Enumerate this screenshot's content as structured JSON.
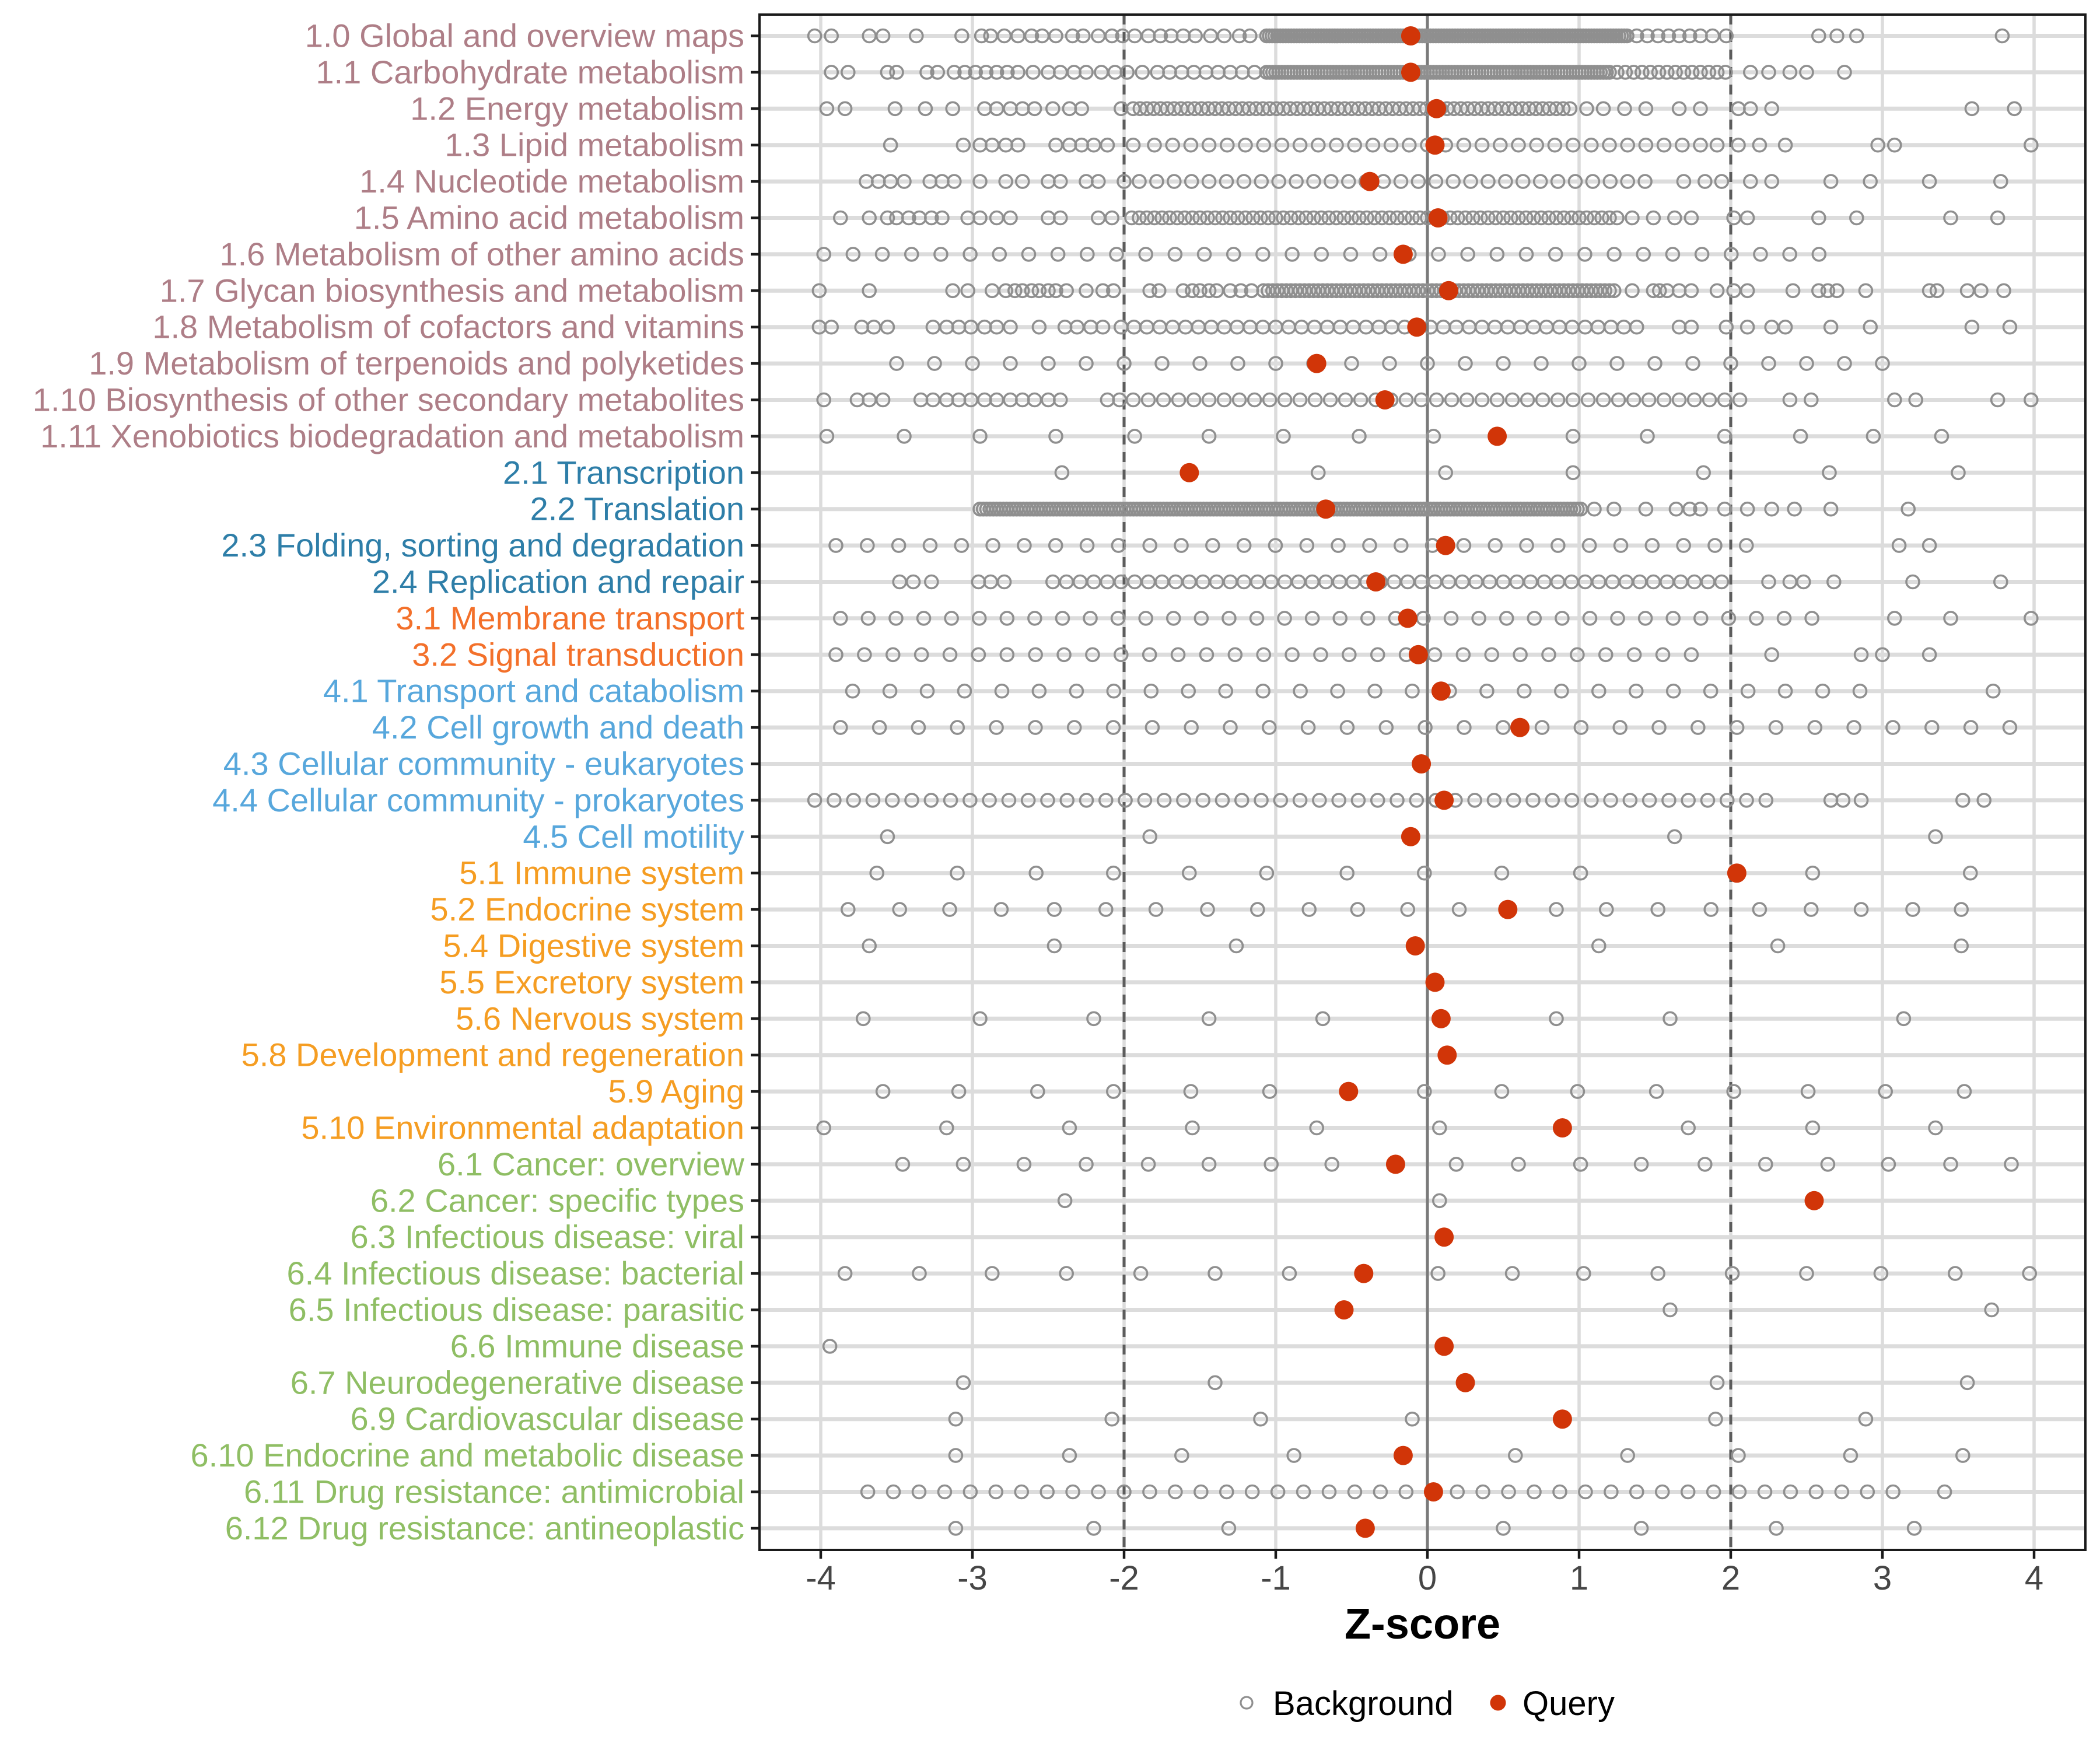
{
  "chart_data": {
    "type": "scatter",
    "title": "",
    "xlabel": "Z-score",
    "x_ticks": [
      -4,
      -3,
      -2,
      -1,
      0,
      1,
      2,
      3,
      4
    ],
    "xlim": [
      -4.4,
      4.34
    ],
    "grid": "on",
    "reference_lines": {
      "solid": [
        0
      ],
      "dashed": [
        -2,
        2
      ]
    },
    "legend": {
      "position": "bottom",
      "items": [
        {
          "label": "Background",
          "style": "open-circle",
          "color": "#8F8F8F"
        },
        {
          "label": "Query",
          "style": "filled-circle",
          "color": "#D13508"
        }
      ]
    },
    "colors": {
      "background_stroke": "#8F8F8F",
      "query_fill": "#D13508",
      "grid_major": "#DCDCDC",
      "zero_line": "#7A7A7A",
      "dashed_line": "#5C5C5C",
      "panel_border": "#1A1A1A",
      "tick_label": "#464646",
      "axis_title": "#000000"
    },
    "group_colors": {
      "metabolism": "#AE7E87",
      "genetic-information-processing": "#2E7EA8",
      "environmental-information-processing": "#F3702A",
      "cellular-processes": "#57A7DC",
      "organismal-systems": "#F59D22",
      "human-diseases": "#8FBE64"
    },
    "rows": [
      {
        "label": "1.0 Global and overview maps",
        "group": "metabolism",
        "query": -0.11,
        "background": [
          -4.04,
          -3.93,
          -3.68,
          -3.59,
          -3.37,
          -3.07,
          -2.94,
          -2.88,
          -2.79,
          -2.7,
          -2.61,
          -2.54,
          -2.45,
          -2.34,
          -2.27,
          -2.17,
          -2.08,
          -2.01,
          -1.93,
          -1.84,
          -1.76,
          -1.69,
          -1.61,
          -1.53,
          -1.43,
          -1.34,
          -1.24,
          -1.17,
          {
            "from": -1.06,
            "to": 1.32,
            "step": 0.018
          },
          1.38,
          1.45,
          1.52,
          1.59,
          1.66,
          1.73,
          1.8,
          1.88,
          1.97,
          2.58,
          2.7,
          2.83,
          3.79
        ]
      },
      {
        "label": "1.1 Carbohydrate metabolism",
        "group": "metabolism",
        "query": -0.11,
        "background": [
          -3.93,
          -3.82,
          -3.56,
          -3.5,
          -3.3,
          -3.23,
          -3.12,
          -3.05,
          -2.98,
          -2.91,
          -2.84,
          -2.77,
          -2.7,
          -2.6,
          -2.5,
          -2.42,
          -2.33,
          -2.25,
          -2.15,
          -2.06,
          -1.98,
          -1.88,
          -1.78,
          -1.7,
          -1.62,
          -1.54,
          -1.46,
          -1.38,
          -1.3,
          -1.22,
          -1.14,
          {
            "from": -1.06,
            "to": 1.2,
            "step": 0.02
          },
          {
            "from": 1.25,
            "to": 2.0,
            "step": 0.055
          },
          2.13,
          2.25,
          2.39,
          2.5,
          2.75
        ]
      },
      {
        "label": "1.2 Energy metabolism",
        "group": "metabolism",
        "query": 0.06,
        "background": [
          -3.96,
          -3.84,
          -3.51,
          -3.31,
          -3.13,
          -2.92,
          -2.84,
          -2.75,
          -2.67,
          -2.59,
          -2.47,
          -2.36,
          -2.28,
          -2.02,
          {
            "from": -1.94,
            "to": 0.98,
            "step": 0.045
          },
          1.05,
          1.16,
          1.3,
          1.44,
          1.66,
          1.8,
          2.05,
          2.13,
          2.27,
          3.59,
          3.87
        ]
      },
      {
        "label": "1.3 Lipid metabolism",
        "group": "metabolism",
        "query": 0.05,
        "background": [
          -3.54,
          -3.06,
          -2.95,
          -2.87,
          -2.78,
          -2.7,
          -2.45,
          -2.36,
          -2.28,
          -2.2,
          -2.11,
          -1.94,
          {
            "from": -1.8,
            "to": 1.8,
            "step": 0.12
          },
          1.91,
          2.05,
          2.19,
          2.36,
          2.97,
          3.08,
          3.98
        ]
      },
      {
        "label": "1.4 Nucleotide metabolism",
        "group": "metabolism",
        "query": -0.38,
        "background": [
          -3.7,
          -3.62,
          -3.54,
          -3.45,
          -3.28,
          -3.2,
          -3.12,
          -2.95,
          -2.78,
          -2.67,
          -2.5,
          -2.42,
          -2.25,
          -2.17,
          -2.0,
          {
            "from": -1.9,
            "to": 1.46,
            "step": 0.115
          },
          1.69,
          1.83,
          1.94,
          2.13,
          2.27,
          2.66,
          2.92,
          3.31,
          3.78
        ]
      },
      {
        "label": "1.5 Amino acid metabolism",
        "group": "metabolism",
        "query": 0.07,
        "background": [
          -3.87,
          -3.68,
          -3.56,
          -3.5,
          -3.42,
          -3.35,
          -3.27,
          -3.2,
          -3.03,
          -2.95,
          -2.84,
          -2.75,
          -2.5,
          -2.42,
          -2.17,
          -2.08,
          {
            "from": -1.95,
            "to": 1.25,
            "step": 0.05
          },
          1.35,
          1.49,
          1.63,
          1.74,
          2.02,
          2.11,
          2.58,
          2.83,
          3.45,
          3.76
        ]
      },
      {
        "label": "1.6 Metabolism of other amino acids",
        "group": "metabolism",
        "query": -0.16,
        "background": [
          {
            "from": -3.98,
            "to": 2.76,
            "step": 0.193
          }
        ]
      },
      {
        "label": "1.7 Glycan biosynthesis and metabolism",
        "group": "metabolism",
        "query": 0.14,
        "background": [
          -4.01,
          -3.68,
          -3.13,
          -3.03,
          -2.87,
          -2.78,
          -2.72,
          -2.67,
          -2.61,
          -2.56,
          -2.5,
          -2.45,
          -2.38,
          -2.25,
          -2.14,
          -2.07,
          -1.83,
          -1.77,
          -1.61,
          -1.55,
          -1.5,
          -1.44,
          -1.39,
          -1.3,
          -1.23,
          -1.16,
          {
            "from": -1.08,
            "to": 1.24,
            "step": 0.03
          },
          1.35,
          1.49,
          1.53,
          1.58,
          1.66,
          1.74,
          1.91,
          2.02,
          2.11,
          2.41,
          2.58,
          2.64,
          2.7,
          2.89,
          3.31,
          3.36,
          3.56,
          3.65,
          3.8
        ]
      },
      {
        "label": "1.8 Metabolism of cofactors and vitamins",
        "group": "metabolism",
        "query": -0.07,
        "background": [
          -4.01,
          -3.93,
          -3.73,
          -3.65,
          -3.56,
          -3.26,
          -3.17,
          -3.09,
          -3.01,
          -2.92,
          -2.84,
          -2.75,
          -2.56,
          -2.39,
          -2.31,
          -2.22,
          -2.14,
          {
            "from": -2.02,
            "to": 1.46,
            "step": 0.085
          },
          1.66,
          1.74,
          1.97,
          2.11,
          2.27,
          2.36,
          2.66,
          2.92,
          3.59,
          3.84
        ]
      },
      {
        "label": "1.9 Metabolism of terpenoids and polyketides",
        "group": "metabolism",
        "query": -0.73,
        "background": [
          {
            "from": -3.5,
            "to": 3.1,
            "step": 0.25
          }
        ]
      },
      {
        "label": "1.10 Biosynthesis of other secondary metabolites",
        "group": "metabolism",
        "query": -0.28,
        "background": [
          -3.98,
          -3.76,
          -3.68,
          -3.59,
          -3.34,
          -3.26,
          -3.17,
          -3.09,
          -3.01,
          -2.92,
          -2.84,
          -2.75,
          -2.67,
          -2.59,
          -2.5,
          -2.42,
          -2.11,
          -2.03,
          {
            "from": -1.94,
            "to": 2.08,
            "step": 0.1
          },
          2.39,
          2.53,
          3.08,
          3.22,
          3.76,
          3.98
        ]
      },
      {
        "label": "1.11 Xenobiotics biodegradation and metabolism",
        "group": "metabolism",
        "query": 0.46,
        "background": [
          -3.96,
          -3.45,
          -2.95,
          -2.45,
          -1.93,
          -1.44,
          -0.95,
          -0.45,
          0.04,
          0.96,
          1.45,
          1.96,
          2.46,
          2.94,
          3.39
        ]
      },
      {
        "label": "2.1 Transcription",
        "group": "genetic-information-processing",
        "query": -1.57,
        "background": [
          -2.41,
          -0.72,
          0.12,
          0.96,
          1.82,
          2.65,
          3.5
        ]
      },
      {
        "label": "2.2 Translation",
        "group": "genetic-information-processing",
        "query": -0.67,
        "background": [
          {
            "from": -2.95,
            "to": 1.01,
            "step": 0.022
          },
          1.1,
          1.23,
          1.44,
          1.64,
          1.73,
          1.8,
          1.96,
          2.11,
          2.27,
          2.42,
          2.66,
          3.17
        ]
      },
      {
        "label": "2.3 Folding, sorting and degradation",
        "group": "genetic-information-processing",
        "query": 0.12,
        "background": [
          {
            "from": -3.9,
            "to": 2.3,
            "step": 0.207
          },
          3.11,
          3.31
        ]
      },
      {
        "label": "2.4 Replication and repair",
        "group": "genetic-information-processing",
        "query": -0.34,
        "background": [
          -3.48,
          -3.39,
          -3.27,
          -2.96,
          -2.88,
          -2.79,
          {
            "from": -2.47,
            "to": 1.96,
            "step": 0.09
          },
          2.25,
          2.39,
          2.48,
          2.68,
          3.2,
          3.78
        ]
      },
      {
        "label": "3.1 Membrane transport",
        "group": "environmental-information-processing",
        "query": -0.13,
        "background": [
          {
            "from": -3.87,
            "to": 2.55,
            "step": 0.183
          },
          3.08,
          3.45,
          3.98
        ]
      },
      {
        "label": "3.2 Signal transduction",
        "group": "environmental-information-processing",
        "query": -0.06,
        "background": [
          {
            "from": -3.9,
            "to": 1.74,
            "step": 0.188
          },
          2.27,
          2.86,
          3.0,
          3.31
        ]
      },
      {
        "label": "4.1 Transport and catabolism",
        "group": "cellular-processes",
        "query": 0.09,
        "background": [
          {
            "from": -3.79,
            "to": 3.03,
            "step": 0.246
          },
          3.73
        ]
      },
      {
        "label": "4.2 Cell growth and death",
        "group": "cellular-processes",
        "query": 0.61,
        "background": [
          {
            "from": -3.87,
            "to": 3.84,
            "step": 0.257
          }
        ]
      },
      {
        "label": "4.3 Cellular community - eukaryotes",
        "group": "cellular-processes",
        "query": -0.04,
        "background": []
      },
      {
        "label": "4.4 Cellular community - prokaryotes",
        "group": "cellular-processes",
        "query": 0.11,
        "background": [
          {
            "from": -4.04,
            "to": 2.3,
            "step": 0.128
          },
          2.66,
          2.74,
          2.86,
          3.53,
          3.67
        ]
      },
      {
        "label": "4.5 Cell motility",
        "group": "cellular-processes",
        "query": -0.11,
        "background": [
          -3.56,
          -1.83,
          1.63,
          3.35
        ]
      },
      {
        "label": "5.1 Immune system",
        "group": "organismal-systems",
        "query": 2.04,
        "background": [
          -3.63,
          -3.1,
          -2.58,
          -2.07,
          -1.57,
          -1.06,
          -0.53,
          -0.02,
          0.49,
          1.01,
          2.54,
          3.58
        ]
      },
      {
        "label": "5.2 Endocrine system",
        "group": "organismal-systems",
        "query": 0.53,
        "background": [
          -3.82,
          -3.48,
          -3.15,
          -2.81,
          -2.46,
          -2.12,
          -1.79,
          -1.45,
          -1.12,
          -0.78,
          -0.46,
          -0.13,
          0.21,
          0.85,
          1.18,
          1.52,
          1.87,
          2.19,
          2.53,
          2.86,
          3.2,
          3.52
        ]
      },
      {
        "label": "5.4 Digestive system",
        "group": "organismal-systems",
        "query": -0.08,
        "background": [
          -3.68,
          -2.46,
          -1.26,
          1.13,
          2.31,
          3.52
        ]
      },
      {
        "label": "5.5 Excretory system",
        "group": "organismal-systems",
        "query": 0.05,
        "background": []
      },
      {
        "label": "5.6 Nervous system",
        "group": "organismal-systems",
        "query": 0.09,
        "background": [
          -3.72,
          -2.95,
          -2.2,
          -1.44,
          -0.69,
          0.85,
          1.6,
          3.14
        ]
      },
      {
        "label": "5.8 Development and regeneration",
        "group": "organismal-systems",
        "query": 0.13,
        "background": []
      },
      {
        "label": "5.9 Aging",
        "group": "organismal-systems",
        "query": -0.52,
        "background": [
          -3.59,
          -3.09,
          -2.57,
          -2.07,
          -1.56,
          -1.04,
          -0.02,
          0.49,
          0.99,
          1.51,
          2.02,
          2.51,
          3.02,
          3.54
        ]
      },
      {
        "label": "5.10 Environmental adaptation",
        "group": "organismal-systems",
        "query": 0.89,
        "background": [
          -3.98,
          -3.17,
          -2.36,
          -1.55,
          -0.73,
          0.08,
          1.72,
          2.54,
          3.35
        ]
      },
      {
        "label": "6.1 Cancer: overview",
        "group": "human-diseases",
        "query": -0.21,
        "background": [
          -3.46,
          -3.06,
          -2.66,
          -2.25,
          -1.84,
          -1.44,
          -1.03,
          -0.63,
          0.19,
          0.6,
          1.01,
          1.41,
          1.83,
          2.23,
          2.64,
          3.04,
          3.45,
          3.85
        ]
      },
      {
        "label": "6.2 Cancer: specific types",
        "group": "human-diseases",
        "query": 2.55,
        "background": [
          -2.39,
          0.08
        ]
      },
      {
        "label": "6.3 Infectious disease: viral",
        "group": "human-diseases",
        "query": 0.11,
        "background": []
      },
      {
        "label": "6.4 Infectious disease: bacterial",
        "group": "human-diseases",
        "query": -0.42,
        "background": [
          -3.84,
          -3.35,
          -2.87,
          -2.38,
          -1.89,
          -1.4,
          -0.91,
          0.07,
          0.56,
          1.03,
          1.52,
          2.01,
          2.5,
          2.99,
          3.48,
          3.97
        ]
      },
      {
        "label": "6.5 Infectious disease: parasitic",
        "group": "human-diseases",
        "query": -0.55,
        "background": [
          1.6,
          3.72
        ]
      },
      {
        "label": "6.6 Immune disease",
        "group": "human-diseases",
        "query": 0.11,
        "background": [
          -3.94
        ]
      },
      {
        "label": "6.7 Neurodegenerative disease",
        "group": "human-diseases",
        "query": 0.25,
        "background": [
          -3.06,
          -1.4,
          1.91,
          3.56
        ]
      },
      {
        "label": "6.9 Cardiovascular disease",
        "group": "human-diseases",
        "query": 0.89,
        "background": [
          -3.11,
          -2.08,
          -1.1,
          -0.1,
          1.9,
          2.89
        ]
      },
      {
        "label": "6.10 Endocrine and metabolic disease",
        "group": "human-diseases",
        "query": -0.16,
        "background": [
          -3.11,
          -2.36,
          -1.62,
          -0.88,
          0.58,
          1.32,
          2.05,
          2.79,
          3.53
        ]
      },
      {
        "label": "6.11 Drug resistance: antimicrobial",
        "group": "human-diseases",
        "query": 0.04,
        "background": [
          {
            "from": -3.69,
            "to": 3.08,
            "step": 0.169
          },
          3.41
        ]
      },
      {
        "label": "6.12 Drug resistance: antineoplastic",
        "group": "human-diseases",
        "query": -0.41,
        "background": [
          -3.11,
          -2.2,
          -1.31,
          0.5,
          1.41,
          2.3,
          3.21
        ]
      }
    ]
  }
}
